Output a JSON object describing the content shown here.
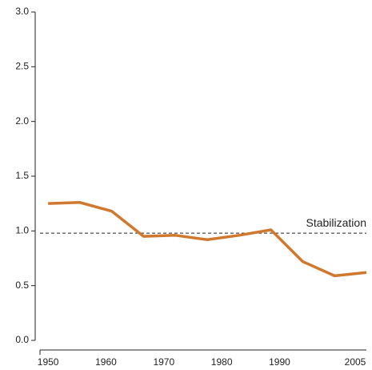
{
  "chart_data": {
    "type": "line",
    "x": [
      1950,
      1955.5,
      1961,
      1966.5,
      1972,
      1977.5,
      1983,
      1988.5,
      1994,
      1999.5,
      2005
    ],
    "series": [
      {
        "color": "#d0782e",
        "values": [
          1.25,
          1.26,
          1.18,
          0.95,
          0.96,
          0.92,
          0.96,
          1.01,
          0.72,
          0.59,
          0.62
        ]
      }
    ],
    "xlim": [
      1948.6,
      2005
    ],
    "xticks": [
      1950,
      1960,
      1970,
      1980,
      1990,
      2005
    ],
    "ylim": [
      0,
      3
    ],
    "yticks": [
      {
        "value": 0,
        "label": "0.0"
      },
      0.5,
      {
        "value": 1,
        "label": "1.0"
      },
      1.5,
      {
        "value": 2,
        "label": "2.0"
      },
      2.5,
      {
        "value": 3,
        "label": "3.0"
      }
    ],
    "reference_line": {
      "value": 0.98,
      "label": "Stabilization"
    },
    "grid": false
  }
}
